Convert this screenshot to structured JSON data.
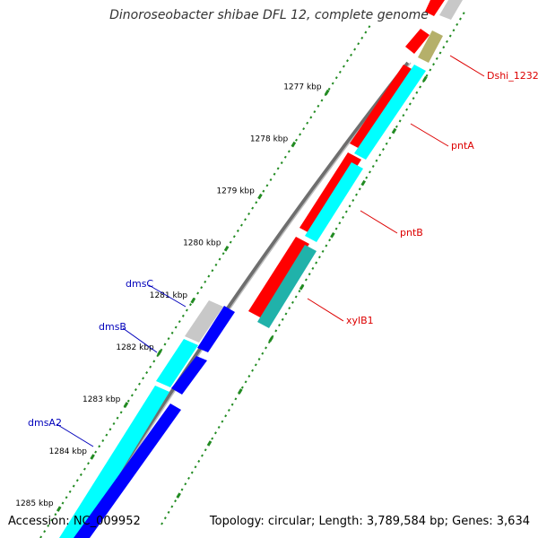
{
  "title": "Dinoroseobacter shibae DFL 12, complete genome",
  "footer": {
    "accession": "Accession: NC_009952",
    "info": "Topology: circular; Length: 3,789,584 bp; Genes: 3,634"
  },
  "colors": {
    "background": "#ffffff",
    "backbone": "#8c8c8c",
    "tick": "#228b22",
    "forward_gene": "#ff0000",
    "reverse_gene_outer": "#00ffff",
    "dms_gene": "#0000ff",
    "gray_gene": "#bfbfbf",
    "olive_gene": "#b5b06a",
    "teal_gene": "#20b2aa",
    "label_red": "#dd0000",
    "label_blue": "#0000bb"
  },
  "ticks": [
    {
      "label": "1277 kbp"
    },
    {
      "label": "1278 kbp"
    },
    {
      "label": "1279 kbp"
    },
    {
      "label": "1280 kbp"
    },
    {
      "label": "1281 kbp"
    },
    {
      "label": "1282 kbp"
    },
    {
      "label": "1283 kbp"
    },
    {
      "label": "1284 kbp"
    },
    {
      "label": "1285 kbp"
    }
  ],
  "gene_labels": {
    "right": [
      "Dshi_1232",
      "pntA",
      "pntB",
      "xylB1"
    ],
    "left": [
      "dmsC",
      "dmsB",
      "dmsA2"
    ]
  }
}
